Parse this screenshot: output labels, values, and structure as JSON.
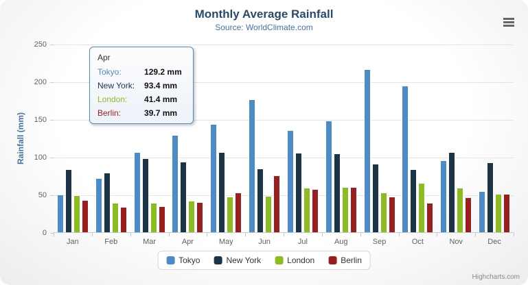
{
  "chart_data": {
    "type": "bar",
    "title": "Monthly Average Rainfall",
    "subtitle": "Source: WorldClimate.com",
    "xlabel": "",
    "ylabel": "Rainfall (mm)",
    "ylim": [
      0,
      250
    ],
    "yticks": [
      0,
      50,
      100,
      150,
      200,
      250
    ],
    "grid": true,
    "legend_position": "bottom",
    "categories": [
      "Jan",
      "Feb",
      "Mar",
      "Apr",
      "May",
      "Jun",
      "Jul",
      "Aug",
      "Sep",
      "Oct",
      "Nov",
      "Dec"
    ],
    "series": [
      {
        "name": "Tokyo",
        "color": "#4B8BC8",
        "values": [
          49.9,
          71.5,
          106.4,
          129.2,
          144.0,
          176.0,
          135.6,
          148.5,
          216.4,
          194.1,
          95.6,
          54.4
        ]
      },
      {
        "name": "New York",
        "color": "#1C3448",
        "values": [
          83.6,
          78.8,
          98.5,
          93.4,
          106.0,
          84.5,
          105.0,
          104.3,
          91.2,
          83.5,
          106.6,
          92.3
        ]
      },
      {
        "name": "London",
        "color": "#8BBC21",
        "values": [
          48.9,
          38.8,
          39.3,
          41.4,
          47.0,
          48.3,
          59.0,
          59.6,
          52.4,
          65.2,
          59.3,
          51.2
        ]
      },
      {
        "name": "Berlin",
        "color": "#9A1E1E",
        "values": [
          42.4,
          33.2,
          34.5,
          39.7,
          52.6,
          75.5,
          57.4,
          60.4,
          47.6,
          39.1,
          46.8,
          51.1
        ]
      }
    ]
  },
  "tooltip": {
    "header": "Apr",
    "rows": [
      {
        "name": "Tokyo",
        "value": "129.2 mm"
      },
      {
        "name": "New York",
        "value": "93.4 mm"
      },
      {
        "name": "London",
        "value": "41.4 mm"
      },
      {
        "name": "Berlin",
        "value": "39.7 mm"
      }
    ]
  },
  "credits": "Highcharts.com",
  "icons": {
    "menu": "hamburger-icon"
  }
}
